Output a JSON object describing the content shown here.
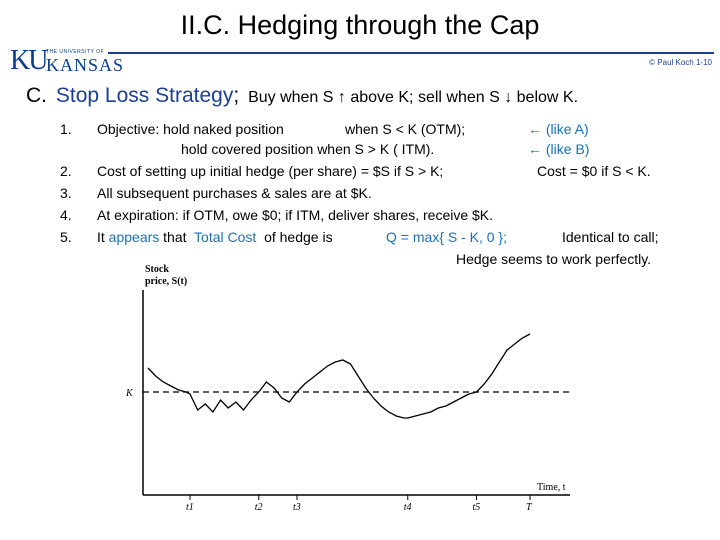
{
  "title": "II.C.  Hedging through the Cap",
  "logo": {
    "ku": "KU",
    "univ": "THE UNIVERSITY OF",
    "name": "KANSAS"
  },
  "copyright": "© Paul Koch 1-10",
  "section": {
    "letter": "C.",
    "label": "Stop Loss Strategy",
    "semi": ";",
    "rest": "Buy  when  S ↑  above K;   sell  when  S ↓  below K."
  },
  "items": [
    {
      "num": "1.",
      "line1_a": "Objective:  hold  naked position",
      "line1_b": "when  S < K  (OTM);",
      "line1_arrow": "← (like A)",
      "line2_a": "hold  covered position  when  S > K  ( ITM).",
      "line2_arrow": "← (like B)"
    },
    {
      "num": "2.",
      "text": "Cost of setting up  initial hedge (per share)  =  $S  if  S > K;",
      "text2": "Cost  =  $0  if  S < K."
    },
    {
      "num": "3.",
      "text": "All  subsequent  purchases & sales  are at  $K."
    },
    {
      "num": "4.",
      "text": "At  expiration:   if OTM,  owe $0;     if  ITM,   deliver shares,  receive $K."
    },
    {
      "num": "5.",
      "text_a": "It",
      "text_b": "appears",
      "text_c": "that",
      "text_d": "Total Cost",
      "text_e": "of hedge is",
      "text_f": "Q = max{ S - K, 0 };",
      "text_g": "Identical to  call;",
      "text_h": "Hedge seems to work perfectly."
    }
  ],
  "chart_data": {
    "type": "line",
    "ylabel_line1": "Stock",
    "ylabel_line2": "price, S(t)",
    "xlabel": "Time, t",
    "k_label": "K",
    "tick_labels": [
      "t1",
      "t2",
      "t3",
      "t4",
      "t5",
      "T"
    ],
    "ticks": [
      0.11,
      0.29,
      0.39,
      0.68,
      0.86,
      1.0
    ],
    "K": 0.5,
    "x": [
      0.0,
      0.02,
      0.04,
      0.06,
      0.08,
      0.1,
      0.11,
      0.13,
      0.15,
      0.17,
      0.19,
      0.21,
      0.23,
      0.25,
      0.27,
      0.29,
      0.31,
      0.33,
      0.35,
      0.37,
      0.39,
      0.41,
      0.43,
      0.45,
      0.47,
      0.49,
      0.51,
      0.53,
      0.55,
      0.57,
      0.59,
      0.61,
      0.63,
      0.65,
      0.67,
      0.68,
      0.7,
      0.72,
      0.74,
      0.76,
      0.78,
      0.8,
      0.82,
      0.84,
      0.86,
      0.88,
      0.9,
      0.92,
      0.94,
      0.96,
      0.98,
      1.0
    ],
    "y": [
      0.62,
      0.58,
      0.55,
      0.53,
      0.51,
      0.5,
      0.49,
      0.41,
      0.44,
      0.4,
      0.46,
      0.42,
      0.45,
      0.41,
      0.46,
      0.5,
      0.55,
      0.52,
      0.47,
      0.45,
      0.5,
      0.54,
      0.57,
      0.6,
      0.63,
      0.65,
      0.66,
      0.64,
      0.58,
      0.52,
      0.47,
      0.43,
      0.4,
      0.38,
      0.37,
      0.37,
      0.38,
      0.39,
      0.4,
      0.42,
      0.43,
      0.45,
      0.47,
      0.49,
      0.5,
      0.54,
      0.59,
      0.65,
      0.71,
      0.74,
      0.77,
      0.79
    ]
  }
}
